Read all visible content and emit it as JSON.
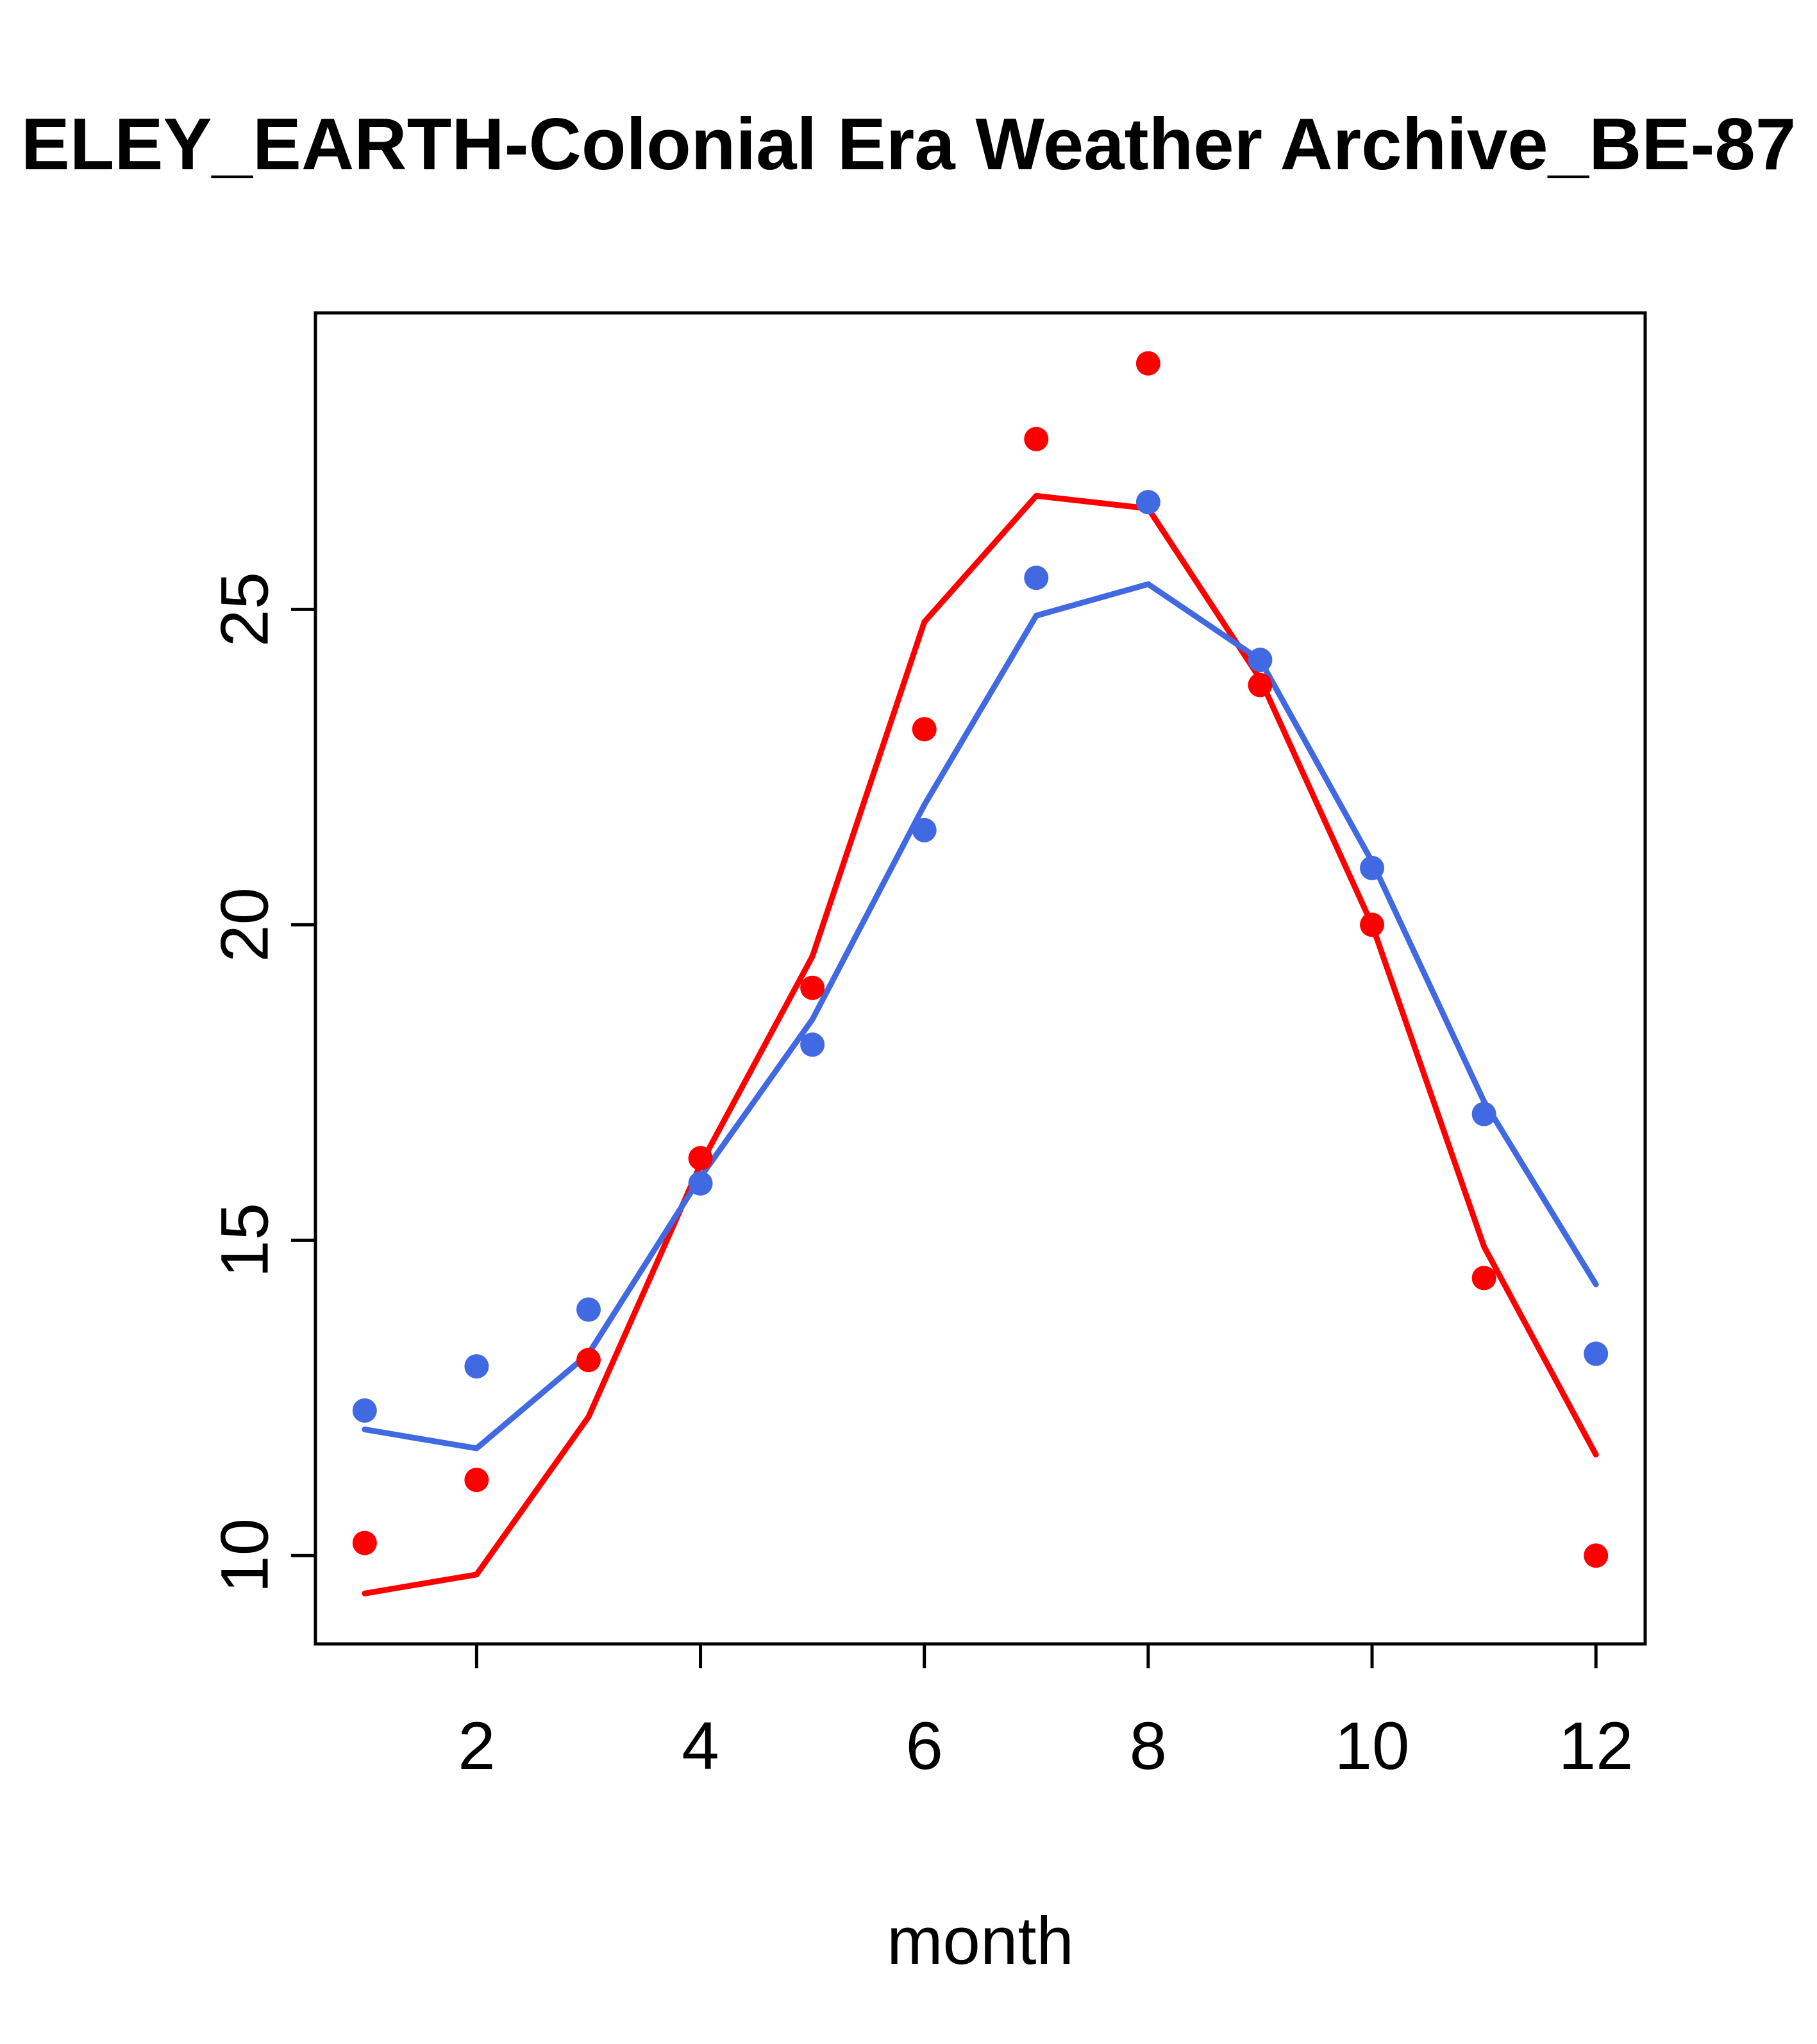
{
  "chart_data": {
    "type": "line",
    "title": "ELEY_EARTH-Colonial Era Weather Archive_BE-87",
    "xlabel": "month",
    "ylabel": "",
    "x": [
      1,
      2,
      3,
      4,
      5,
      6,
      7,
      8,
      9,
      10,
      11,
      12
    ],
    "xlim": [
      0.56,
      12.44
    ],
    "ylim": [
      8.6,
      29.7
    ],
    "xticks": [
      2,
      4,
      6,
      8,
      10,
      12
    ],
    "yticks": [
      10,
      15,
      20,
      25
    ],
    "grid": false,
    "legend": "none",
    "colors": {
      "red": "#FF0000",
      "blue": "#4169E1",
      "axis": "#000000",
      "background": "#FFFFFF"
    },
    "series": [
      {
        "name": "red-line",
        "type": "line",
        "color": "#FF0000",
        "values": [
          9.4,
          9.7,
          12.2,
          16.2,
          19.5,
          24.8,
          26.8,
          26.6,
          23.9,
          20.0,
          14.9,
          11.6
        ]
      },
      {
        "name": "blue-line",
        "type": "line",
        "color": "#4169E1",
        "values": [
          12.0,
          11.7,
          13.2,
          16.0,
          18.5,
          21.9,
          24.9,
          25.4,
          24.2,
          21.0,
          17.2,
          14.3
        ]
      },
      {
        "name": "red-points",
        "type": "points",
        "color": "#FF0000",
        "values": [
          10.2,
          11.2,
          13.1,
          16.3,
          19.0,
          23.1,
          27.7,
          28.9,
          23.8,
          20.0,
          14.4,
          10.0
        ]
      },
      {
        "name": "blue-points",
        "type": "points",
        "color": "#4169E1",
        "values": [
          12.3,
          13.0,
          13.9,
          15.9,
          18.1,
          21.5,
          25.5,
          26.7,
          24.2,
          20.9,
          17.0,
          13.2
        ]
      }
    ]
  }
}
